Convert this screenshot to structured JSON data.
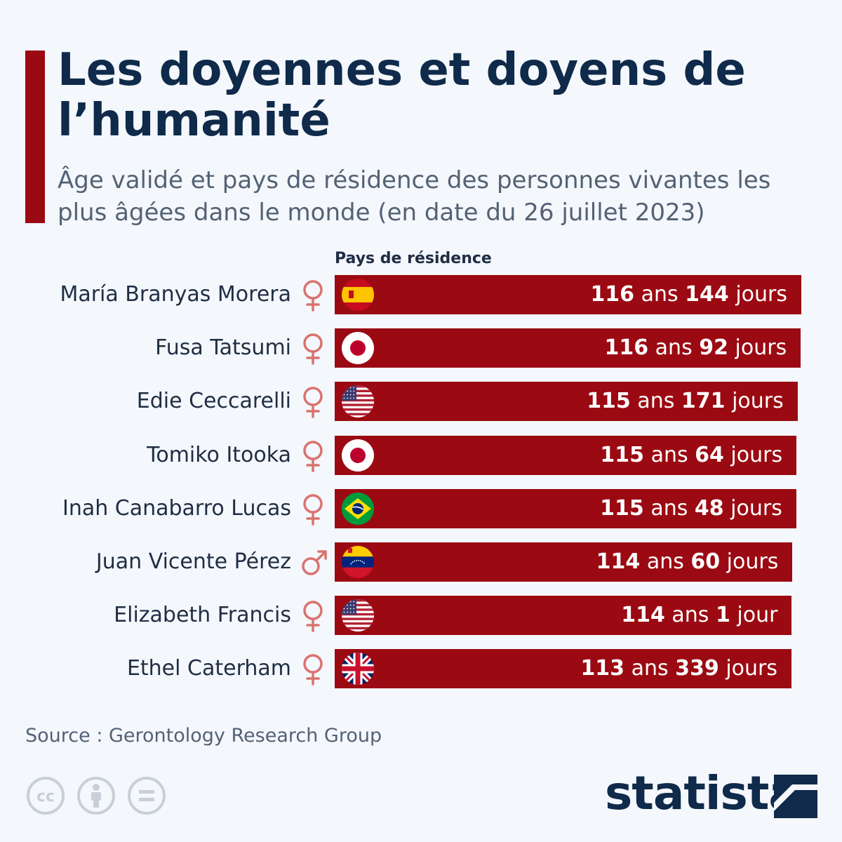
{
  "header": {
    "title": "Les doyennes et doyens de l’humanité",
    "subtitle": "Âge validé et pays de résidence des personnes vivantes les plus âgées dans le monde (en date du 26 juillet 2023)"
  },
  "chart_data": {
    "type": "bar",
    "orientation": "horizontal",
    "column_header": "Pays de résidence",
    "unit_years": "ans",
    "unit_days": "jours",
    "rows": [
      {
        "name": "María Branyas Morera",
        "gender": "female",
        "country_flag": "spain",
        "years": 116,
        "days": 144,
        "days_label": "jours"
      },
      {
        "name": "Fusa Tatsumi",
        "gender": "female",
        "country_flag": "japan",
        "years": 116,
        "days": 92,
        "days_label": "jours"
      },
      {
        "name": "Edie Ceccarelli",
        "gender": "female",
        "country_flag": "usa",
        "years": 115,
        "days": 171,
        "days_label": "jours"
      },
      {
        "name": "Tomiko Itooka",
        "gender": "female",
        "country_flag": "japan",
        "years": 115,
        "days": 64,
        "days_label": "jours"
      },
      {
        "name": "Inah Canabarro Lucas",
        "gender": "female",
        "country_flag": "brazil",
        "years": 115,
        "days": 48,
        "days_label": "jours"
      },
      {
        "name": "Juan Vicente Pérez",
        "gender": "male",
        "country_flag": "venezuela",
        "years": 114,
        "days": 60,
        "days_label": "jours"
      },
      {
        "name": "Elizabeth Francis",
        "gender": "female",
        "country_flag": "usa",
        "years": 114,
        "days": 1,
        "days_label": "jour"
      },
      {
        "name": "Ethel Caterham",
        "gender": "female",
        "country_flag": "uk",
        "years": 113,
        "days": 339,
        "days_label": "jours"
      }
    ],
    "bar_color": "#9b0a12"
  },
  "footer": {
    "source": "Source : Gerontology Research Group",
    "logo": "statista",
    "license_icons": [
      "cc-icon",
      "attribution-icon",
      "no-derivatives-icon"
    ]
  }
}
